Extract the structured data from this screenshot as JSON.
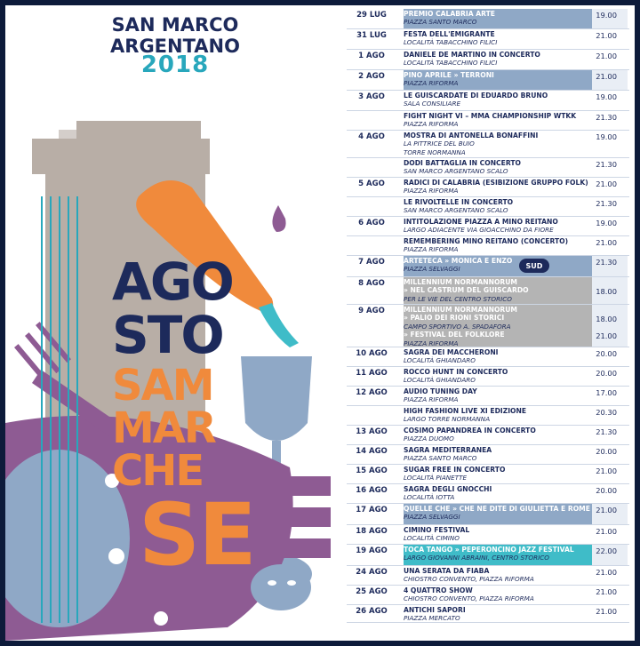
{
  "header": {
    "city_line1": "SAN MARCO",
    "city_line2": "ARGENTANO",
    "year": "2018"
  },
  "art": {
    "w1": "AGO",
    "w2": "STO",
    "w3": "SAM",
    "w4": "MAR",
    "w5": "CHE",
    "w6": "SE"
  },
  "colors": {
    "navy": "#1d2a5b",
    "teal": "#28a7bc",
    "orange": "#f08a3c",
    "purple": "#8e5b93",
    "gray": "#b8aea6",
    "band_blue": "#8fa8c6",
    "band_teal": "#3fbcc8",
    "band_gray": "#b4b4b4"
  },
  "logo": {
    "text": "SUD"
  },
  "schedule": [
    {
      "date": "29 LUG",
      "lines": [
        {
          "t": "PREMIO CALABRIA ARTE",
          "k": "t"
        },
        {
          "t": "PIAZZA SANTO MARCO",
          "k": "s"
        }
      ],
      "times": [
        "19.00"
      ],
      "band": "blue",
      "h": 23
    },
    {
      "date": "31 LUG",
      "lines": [
        {
          "t": "FESTA DELL'EMIGRANTE",
          "k": "t"
        },
        {
          "t": "LOCALITÀ TABACCHINO FILICI",
          "k": "s"
        }
      ],
      "times": [
        "21.00"
      ],
      "band": "",
      "h": 23
    },
    {
      "date": "1 AGO",
      "lines": [
        {
          "t": "DANIELE DE MARTINO IN CONCERTO",
          "k": "t"
        },
        {
          "t": "LOCALITÀ TABACCHINO FILICI",
          "k": "s"
        }
      ],
      "times": [
        "21.00"
      ],
      "band": "",
      "h": 23
    },
    {
      "date": "2 AGO",
      "lines": [
        {
          "t": "PINO APRILE » TERRONI",
          "k": "t"
        },
        {
          "t": "PIAZZA RIFORMA",
          "k": "s"
        }
      ],
      "times": [
        "21.00"
      ],
      "band": "blue",
      "h": 23
    },
    {
      "date": "3 AGO",
      "lines": [
        {
          "t": "LE GUISCARDATE DI EDUARDO BRUNO",
          "k": "t"
        },
        {
          "t": "SALA CONSILIARE",
          "k": "s"
        }
      ],
      "times": [
        "19.00"
      ],
      "band": "",
      "h": 23
    },
    {
      "date": "",
      "lines": [
        {
          "t": "FIGHT NIGHT VI – MMA CHAMPIONSHIP WTKK",
          "k": "t"
        },
        {
          "t": "PIAZZA RIFORMA",
          "k": "s"
        }
      ],
      "times": [
        "21.30"
      ],
      "band": "",
      "h": 22
    },
    {
      "date": "4 AGO",
      "lines": [
        {
          "t": "MOSTRA DI ANTONELLA BONAFFINI",
          "k": "t"
        },
        {
          "t": "LA PITTRICE DEL BUIO",
          "k": "s"
        },
        {
          "t": "TORRE NORMANNA",
          "k": "s"
        }
      ],
      "times": [
        "19.00"
      ],
      "band": "",
      "h": 31
    },
    {
      "date": "",
      "lines": [
        {
          "t": "DODI BATTAGLIA IN CONCERTO",
          "k": "t"
        },
        {
          "t": "SAN MARCO ARGENTANO SCALO",
          "k": "s"
        }
      ],
      "times": [
        "21.30"
      ],
      "band": "",
      "h": 22
    },
    {
      "date": "5 AGO",
      "lines": [
        {
          "t": "RADICI DI CALABRIA (ESIBIZIONE GRUPPO FOLK)",
          "k": "t"
        },
        {
          "t": "PIAZZA RIFORMA",
          "k": "s"
        }
      ],
      "times": [
        "21.00"
      ],
      "band": "",
      "h": 22
    },
    {
      "date": "",
      "lines": [
        {
          "t": "LE RIVOLTELLE IN CONCERTO",
          "k": "t"
        },
        {
          "t": "SAN MARCO ARGENTANO SCALO",
          "k": "s"
        }
      ],
      "times": [
        "21.30"
      ],
      "band": "",
      "h": 22
    },
    {
      "date": "6 AGO",
      "lines": [
        {
          "t": "INTITOLAZIONE PIAZZA A MINO REITANO",
          "k": "t"
        },
        {
          "t": "LARGO ADIACENTE VIA GIOACCHINO DA FIORE",
          "k": "s"
        }
      ],
      "times": [
        "19.00"
      ],
      "band": "",
      "h": 22
    },
    {
      "date": "",
      "lines": [
        {
          "t": "REMEMBERING MINO REITANO (CONCERTO)",
          "k": "t"
        },
        {
          "t": "PIAZZA RIFORMA",
          "k": "s"
        }
      ],
      "times": [
        "21.00"
      ],
      "band": "",
      "h": 22
    },
    {
      "date": "7 AGO",
      "lines": [
        {
          "t": "ARTETECA » MONICA E ENZO",
          "k": "t"
        },
        {
          "t": "PIAZZA SELVAGGI",
          "k": "s"
        }
      ],
      "times": [
        "21.30"
      ],
      "band": "blue",
      "h": 24,
      "logo": true
    },
    {
      "date": "8 AGO",
      "lines": [
        {
          "t": "MILLENNIUM NORMANNORUM",
          "k": "t"
        },
        {
          "t": "» NEL CASTRUM DEL GUISCARDO",
          "k": "tn"
        },
        {
          "t": "PER LE VIE DEL CENTRO STORICO",
          "k": "s"
        }
      ],
      "times": [
        "",
        "18.00"
      ],
      "band": "gray",
      "h": 31
    },
    {
      "date": "9 AGO",
      "lines": [
        {
          "t": "MILLENNIUM NORMANNORUM",
          "k": "t"
        },
        {
          "t": "» PALIO DEI RIONI STORICI",
          "k": "tn"
        },
        {
          "t": "CAMPO SPORTIVO A. SPADAFORA",
          "k": "s"
        },
        {
          "t": "» FESTIVAL DEL FOLKLORE",
          "k": "tn"
        },
        {
          "t": "PIAZZA RIFORMA",
          "k": "s"
        }
      ],
      "times": [
        "",
        "18.00",
        "",
        "21.00"
      ],
      "band": "gray",
      "h": 48
    },
    {
      "date": "10 AGO",
      "lines": [
        {
          "t": "SAGRA DEI MACCHERONI",
          "k": "t"
        },
        {
          "t": "LOCALITÀ GHIANDARO",
          "k": "s"
        }
      ],
      "times": [
        "20.00"
      ],
      "band": "",
      "h": 22
    },
    {
      "date": "11 AGO",
      "lines": [
        {
          "t": "ROCCO HUNT IN CONCERTO",
          "k": "t"
        },
        {
          "t": "LOCALITÀ GHIANDARO",
          "k": "s"
        }
      ],
      "times": [
        "20.00"
      ],
      "band": "",
      "h": 22
    },
    {
      "date": "12 AGO",
      "lines": [
        {
          "t": "AUDIO TUNING DAY",
          "k": "t"
        },
        {
          "t": "PIAZZA RIFORMA",
          "k": "s"
        }
      ],
      "times": [
        "17.00"
      ],
      "band": "",
      "h": 22
    },
    {
      "date": "",
      "lines": [
        {
          "t": "HIGH FASHION LIVE XI EDIZIONE",
          "k": "t"
        },
        {
          "t": "LARGO TORRE NORMANNA",
          "k": "s"
        }
      ],
      "times": [
        "20.30"
      ],
      "band": "",
      "h": 22
    },
    {
      "date": "13 AGO",
      "lines": [
        {
          "t": "COSIMO PAPANDREA IN CONCERTO",
          "k": "t"
        },
        {
          "t": "PIAZZA DUOMO",
          "k": "s"
        }
      ],
      "times": [
        "21.30"
      ],
      "band": "",
      "h": 22
    },
    {
      "date": "14 AGO",
      "lines": [
        {
          "t": "SAGRA MEDITERRANEA",
          "k": "t"
        },
        {
          "t": "PIAZZA SANTO MARCO",
          "k": "s"
        }
      ],
      "times": [
        "20.00"
      ],
      "band": "",
      "h": 22
    },
    {
      "date": "15 AGO",
      "lines": [
        {
          "t": "SUGAR FREE IN CONCERTO",
          "k": "t"
        },
        {
          "t": "LOCALITÀ PIANETTE",
          "k": "s"
        }
      ],
      "times": [
        "21.00"
      ],
      "band": "",
      "h": 22
    },
    {
      "date": "16 AGO",
      "lines": [
        {
          "t": "SAGRA DEGLI GNOCCHI",
          "k": "t"
        },
        {
          "t": "LOCALITÀ IOTTA",
          "k": "s"
        }
      ],
      "times": [
        "20.00"
      ],
      "band": "",
      "h": 22
    },
    {
      "date": "17 AGO",
      "lines": [
        {
          "t": "QUELLE CHE » CHE NE DITE DI GIULIETTA E ROMEO?",
          "k": "t"
        },
        {
          "t": "PIAZZA SELVAGGI",
          "k": "s"
        }
      ],
      "times": [
        "21.00"
      ],
      "band": "blue",
      "h": 24
    },
    {
      "date": "18 AGO",
      "lines": [
        {
          "t": "CIMINO FESTIVAL",
          "k": "t"
        },
        {
          "t": "LOCALITÀ CIMINO",
          "k": "s"
        }
      ],
      "times": [
        "21.00"
      ],
      "band": "",
      "h": 22
    },
    {
      "date": "19 AGO",
      "lines": [
        {
          "t": "TOCA TANGO » PEPERONCINO JAZZ FESTIVAL",
          "k": "t"
        },
        {
          "t": "LARGO GIOVANNI ABRAINI, CENTRO STORICO",
          "k": "s"
        }
      ],
      "times": [
        "22.00"
      ],
      "band": "teal",
      "h": 24
    },
    {
      "date": "24 AGO",
      "lines": [
        {
          "t": "UNA SERATA DA FIABA",
          "k": "t"
        },
        {
          "t": "CHIOSTRO CONVENTO, PIAZZA RIFORMA",
          "k": "s"
        }
      ],
      "times": [
        "21.00"
      ],
      "band": "",
      "h": 22
    },
    {
      "date": "25 AGO",
      "lines": [
        {
          "t": "4 QUATTRO SHOW",
          "k": "t"
        },
        {
          "t": "CHIOSTRO CONVENTO, PIAZZA RIFORMA",
          "k": "s"
        }
      ],
      "times": [
        "21.00"
      ],
      "band": "",
      "h": 22
    },
    {
      "date": "26 AGO",
      "lines": [
        {
          "t": "ANTICHI SAPORI",
          "k": "t"
        },
        {
          "t": "PIAZZA MERCATO",
          "k": "s"
        }
      ],
      "times": [
        "21.00"
      ],
      "band": "",
      "h": 20
    }
  ]
}
